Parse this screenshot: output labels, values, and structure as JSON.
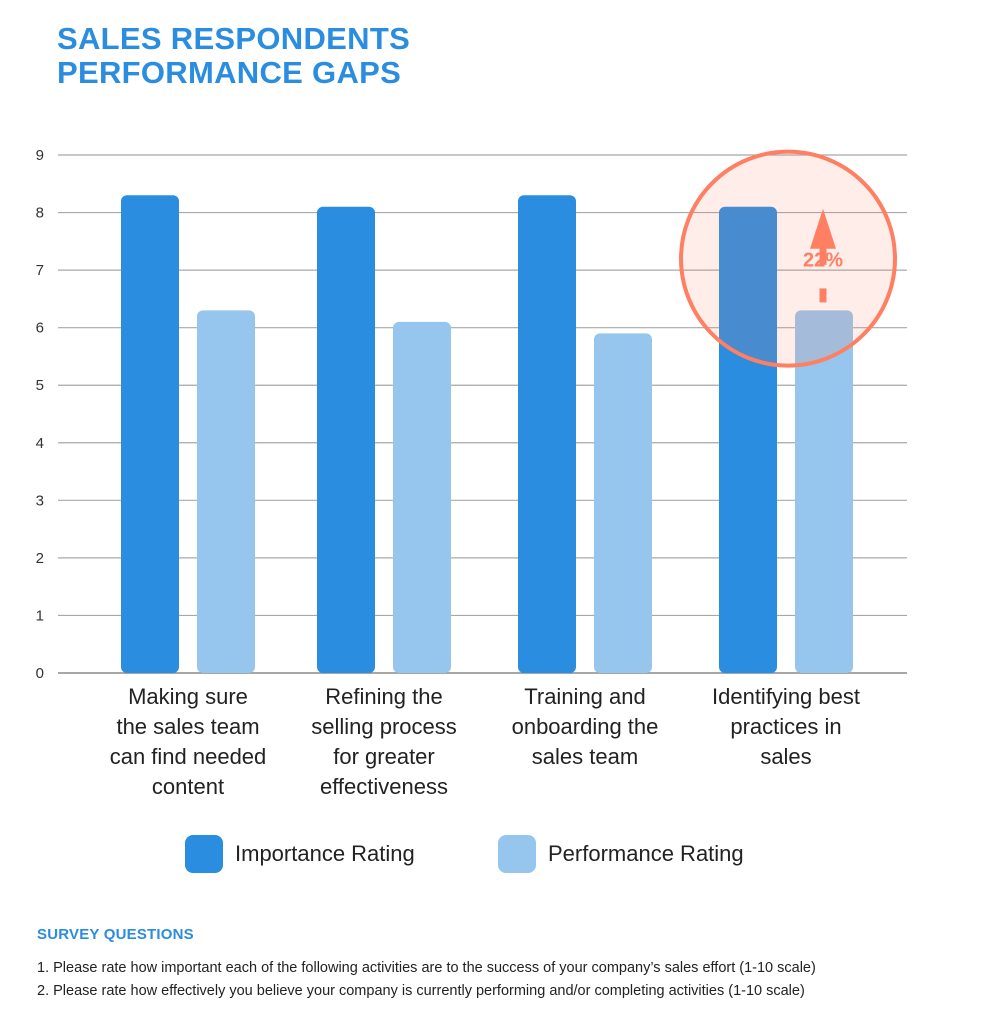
{
  "title_lines": [
    "SALES RESPONDENTS",
    "PERFORMANCE GAPS"
  ],
  "chart_data": {
    "type": "bar",
    "categories": [
      [
        "Making sure",
        "the sales team",
        "can find needed",
        "content"
      ],
      [
        "Refining the",
        "selling process",
        "for greater",
        "effectiveness"
      ],
      [
        "Training and",
        "onboarding the",
        "sales team"
      ],
      [
        "Identifying best",
        "practices in",
        "sales"
      ]
    ],
    "series": [
      {
        "name": "Importance Rating",
        "values": [
          8.3,
          8.1,
          8.3,
          8.1
        ],
        "color": "#2b8de0"
      },
      {
        "name": "Performance Rating",
        "values": [
          6.3,
          6.1,
          5.9,
          6.3
        ],
        "color": "#96c6ee"
      }
    ],
    "ylim": [
      0,
      9
    ],
    "yticks": [
      "0",
      "1",
      "2",
      "3",
      "4",
      "5",
      "6",
      "7",
      "8",
      "9"
    ],
    "grid": true,
    "legend_position": "bottom",
    "annotation": {
      "text": "22%",
      "category_index": 3,
      "color": "#ff7f63"
    }
  },
  "survey": {
    "heading": "SURVEY QUESTIONS",
    "items": [
      "1.  Please rate how important each of the following activities are to the success of your company’s sales effort (1-10 scale)",
      "2. Please rate how effectively you believe your company is currently performing and/or completing activities (1-10 scale)"
    ]
  }
}
